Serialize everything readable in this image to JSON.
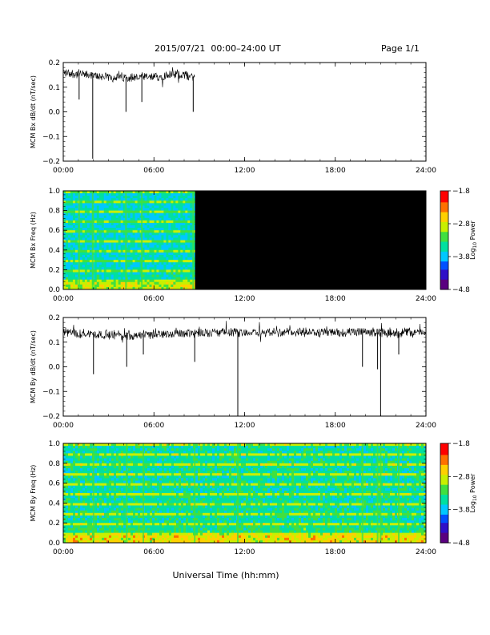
{
  "header": {
    "title": "2015/07/21  00:00–24:00 UT",
    "page": "Page 1/1"
  },
  "colors": {
    "trace": "#000000",
    "colormap": [
      "#5a0080",
      "#3010c8",
      "#0050ff",
      "#00c8ff",
      "#00e0a0",
      "#40e040",
      "#c8f000",
      "#ffd000",
      "#ff7000",
      "#ff0000"
    ]
  },
  "time_ticks": [
    "00:00",
    "06:00",
    "12:00",
    "18:00",
    "24:00"
  ],
  "xlabel": "Universal Time (hh:mm)",
  "chart_data": [
    {
      "type": "line",
      "ylabel": "MCM Bx dB/dt (nT/sec)",
      "ylim": [
        -0.2,
        0.2
      ],
      "yticks": [
        "0.2",
        "0.1",
        "0.0",
        "−0.1",
        "−0.2"
      ],
      "xlim": [
        0,
        24
      ],
      "data_end_hour": 8.7,
      "baseline": [
        [
          0,
          0.16
        ],
        [
          1.5,
          0.15
        ],
        [
          3,
          0.14
        ],
        [
          4.5,
          0.14
        ],
        [
          6,
          0.14
        ],
        [
          7,
          0.15
        ],
        [
          8,
          0.15
        ],
        [
          8.7,
          0.14
        ]
      ],
      "spikes": [
        [
          1.05,
          0.05
        ],
        [
          1.95,
          -0.19
        ],
        [
          4.15,
          0.0
        ],
        [
          5.2,
          0.04
        ],
        [
          8.6,
          0.0
        ]
      ]
    },
    {
      "type": "heatmap",
      "ylabel": "MCM Bx Freq (Hz)",
      "ylim": [
        0,
        1.0
      ],
      "yticks": [
        "1.0",
        "0.8",
        "0.6",
        "0.4",
        "0.2",
        "0.0"
      ],
      "xlim": [
        0,
        24
      ],
      "data_end_hour": 8.7,
      "colorbar_label": "Log10 Power",
      "colorbar_ticks": [
        "−1.8",
        "−2.8",
        "−3.8",
        "−4.8"
      ],
      "crange": [
        -4.8,
        -1.8
      ]
    },
    {
      "type": "line",
      "ylabel": "MCM By dB/dt (nT/sec)",
      "ylim": [
        -0.2,
        0.2
      ],
      "yticks": [
        "0.2",
        "0.1",
        "0.0",
        "−0.1",
        "−0.2"
      ],
      "xlim": [
        0,
        24
      ],
      "data_end_hour": 24,
      "baseline": [
        [
          0,
          0.14
        ],
        [
          3,
          0.13
        ],
        [
          6,
          0.13
        ],
        [
          9,
          0.14
        ],
        [
          12,
          0.14
        ],
        [
          15,
          0.14
        ],
        [
          18,
          0.14
        ],
        [
          21,
          0.14
        ],
        [
          24,
          0.14
        ]
      ],
      "spikes": [
        [
          2.0,
          -0.03
        ],
        [
          4.2,
          0.0
        ],
        [
          5.3,
          0.05
        ],
        [
          8.7,
          0.02
        ],
        [
          11.55,
          -0.2
        ],
        [
          19.8,
          0.0
        ],
        [
          20.8,
          -0.01
        ],
        [
          21.0,
          -0.2
        ],
        [
          22.2,
          0.05
        ]
      ]
    },
    {
      "type": "heatmap",
      "ylabel": "MCM By Freq (Hz)",
      "ylim": [
        0,
        1.0
      ],
      "yticks": [
        "1.0",
        "0.8",
        "0.6",
        "0.4",
        "0.2",
        "0.0"
      ],
      "xlim": [
        0,
        24
      ],
      "data_end_hour": 24,
      "colorbar_label": "Log10 Power",
      "colorbar_ticks": [
        "−1.8",
        "−2.8",
        "−3.8",
        "−4.8"
      ],
      "crange": [
        -4.8,
        -1.8
      ]
    }
  ]
}
